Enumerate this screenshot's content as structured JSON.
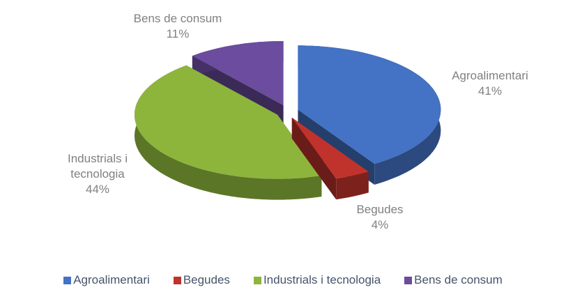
{
  "chart_data": {
    "type": "pie",
    "categories": [
      "Agroalimentari",
      "Begudes",
      "Industrials i tecnologia",
      "Bens de consum"
    ],
    "values": [
      41,
      4,
      44,
      11
    ],
    "value_labels": [
      "41%",
      "4%",
      "44%",
      "11%"
    ],
    "colors": [
      "#4472c4",
      "#c0332c",
      "#8db53c",
      "#6b4c9e"
    ],
    "legend": "bottom"
  }
}
